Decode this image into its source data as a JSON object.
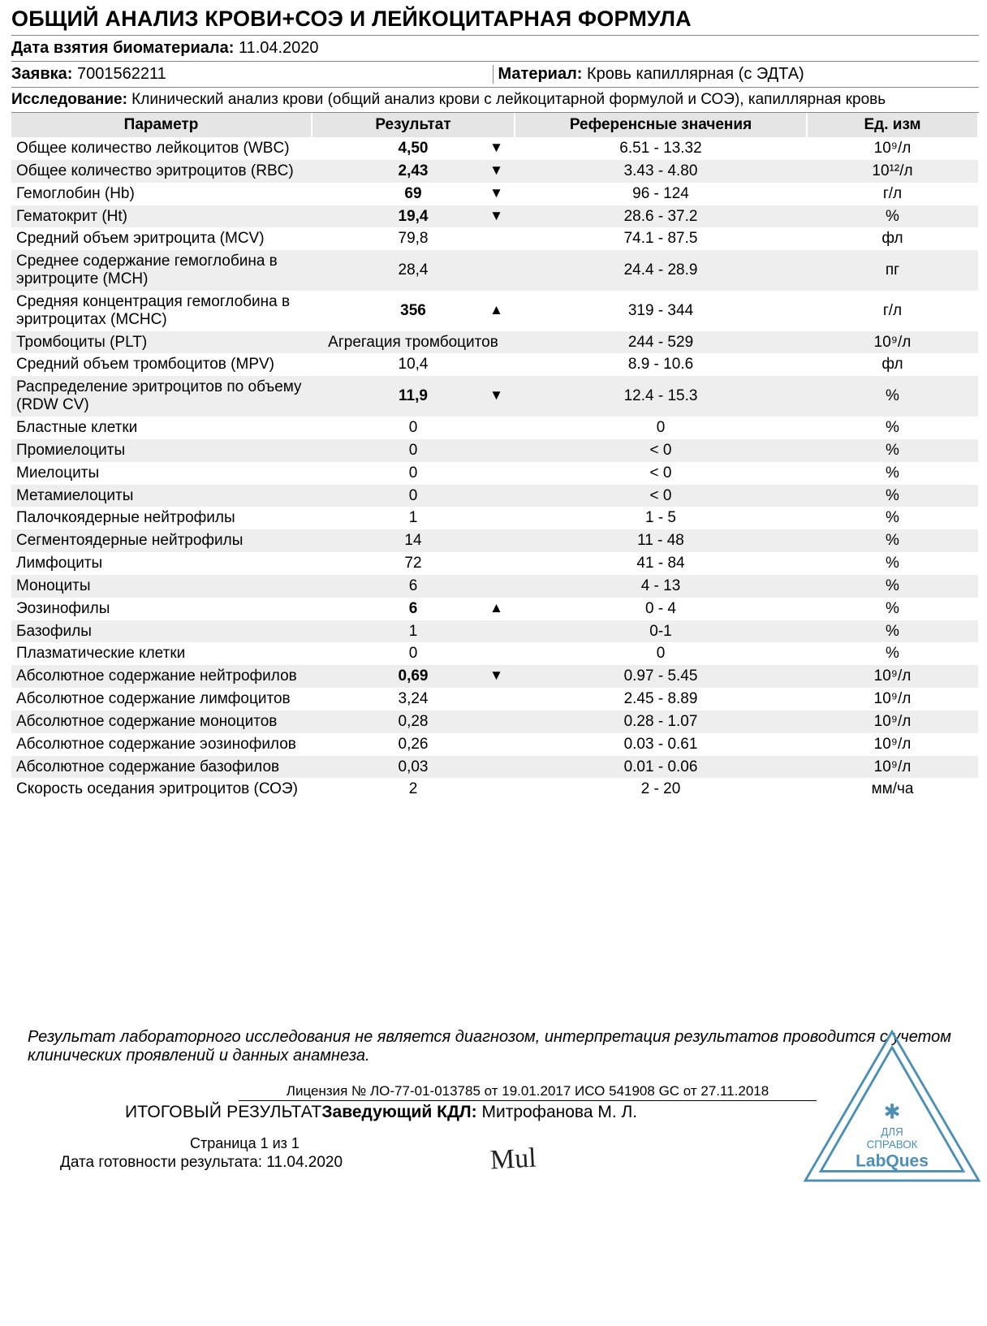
{
  "header": {
    "title": "ОБЩИЙ АНАЛИЗ КРОВИ+СОЭ И ЛЕЙКОЦИТАРНАЯ ФОРМУЛА",
    "biomaterial_label": "Дата взятия биоматериала:",
    "biomaterial_date": "11.04.2020",
    "request_label": "Заявка:",
    "request_number": "7001562211",
    "material_label": "Материал:",
    "material_value": "Кровь капиллярная (с ЭДТА)",
    "study_label": "Исследование:",
    "study_value": "Клинический анализ крови (общий анализ крови с лейкоцитарной формулой и СОЭ), капиллярная кровь"
  },
  "table": {
    "columns": {
      "parameter": "Параметр",
      "result": "Результат",
      "reference": "Референсные значения",
      "units": "Ед. изм"
    },
    "header_bg": "#e5e5e5",
    "row_shade_bg": "#eeeeee",
    "rows": [
      {
        "param": "Общее количество лейкоцитов (WBC)",
        "result": "4,50",
        "bold": true,
        "flag": "down",
        "ref": "6.51 - 13.32",
        "unit": "10⁹/л",
        "shade": false
      },
      {
        "param": "Общее количество эритроцитов (RBC)",
        "result": "2,43",
        "bold": true,
        "flag": "down",
        "ref": "3.43 - 4.80",
        "unit": "10¹²/л",
        "shade": true
      },
      {
        "param": "Гемоглобин (Hb)",
        "result": "69",
        "bold": true,
        "flag": "down",
        "ref": "96 - 124",
        "unit": "г/л",
        "shade": false
      },
      {
        "param": "Гематокрит (Ht)",
        "result": "19,4",
        "bold": true,
        "flag": "down",
        "ref": "28.6 - 37.2",
        "unit": "%",
        "shade": true
      },
      {
        "param": "Средний объем эритроцита (MCV)",
        "result": "79,8",
        "bold": false,
        "flag": "",
        "ref": "74.1 - 87.5",
        "unit": "фл",
        "shade": false
      },
      {
        "param": "Среднее содержание гемоглобина в эритроците (MCH)",
        "result": "28,4",
        "bold": false,
        "flag": "",
        "ref": "24.4 - 28.9",
        "unit": "пг",
        "shade": true
      },
      {
        "param": "Средняя концентрация гемоглобина в эритроцитах (MCHC)",
        "result": "356",
        "bold": true,
        "flag": "up",
        "ref": "319 - 344",
        "unit": "г/л",
        "shade": false
      },
      {
        "param": "Тромбоциты (PLT)",
        "result": "Агрегация тромбоцитов",
        "bold": false,
        "flag": "",
        "ref": "244 - 529",
        "unit": "10⁹/л",
        "shade": true
      },
      {
        "param": "Средний объем тромбоцитов (MPV)",
        "result": "10,4",
        "bold": false,
        "flag": "",
        "ref": "8.9 - 10.6",
        "unit": "фл",
        "shade": false
      },
      {
        "param": "Распределение эритроцитов по объему (RDW CV)",
        "result": "11,9",
        "bold": true,
        "flag": "down",
        "ref": "12.4 - 15.3",
        "unit": "%",
        "shade": true
      },
      {
        "param": "Бластные клетки",
        "result": "0",
        "bold": false,
        "flag": "",
        "ref": "0",
        "unit": "%",
        "shade": false
      },
      {
        "param": "Промиелоциты",
        "result": "0",
        "bold": false,
        "flag": "",
        "ref": "< 0",
        "unit": "%",
        "shade": true
      },
      {
        "param": "Миелоциты",
        "result": "0",
        "bold": false,
        "flag": "",
        "ref": "< 0",
        "unit": "%",
        "shade": false
      },
      {
        "param": "Метамиелоциты",
        "result": "0",
        "bold": false,
        "flag": "",
        "ref": "< 0",
        "unit": "%",
        "shade": true
      },
      {
        "param": "Палочкоядерные нейтрофилы",
        "result": "1",
        "bold": false,
        "flag": "",
        "ref": "1 - 5",
        "unit": "%",
        "shade": false
      },
      {
        "param": "Сегментоядерные нейтрофилы",
        "result": "14",
        "bold": false,
        "flag": "",
        "ref": "11 - 48",
        "unit": "%",
        "shade": true
      },
      {
        "param": "Лимфоциты",
        "result": "72",
        "bold": false,
        "flag": "",
        "ref": "41 - 84",
        "unit": "%",
        "shade": false
      },
      {
        "param": "Моноциты",
        "result": "6",
        "bold": false,
        "flag": "",
        "ref": "4 - 13",
        "unit": "%",
        "shade": true
      },
      {
        "param": "Эозинофилы",
        "result": "6",
        "bold": true,
        "flag": "up",
        "ref": "0 - 4",
        "unit": "%",
        "shade": false
      },
      {
        "param": "Базофилы",
        "result": "1",
        "bold": false,
        "flag": "",
        "ref": "0-1",
        "unit": "%",
        "shade": true
      },
      {
        "param": "Плазматические клетки",
        "result": "0",
        "bold": false,
        "flag": "",
        "ref": "0",
        "unit": "%",
        "shade": false
      },
      {
        "param": "Абсолютное содержание нейтрофилов",
        "result": "0,69",
        "bold": true,
        "flag": "down",
        "ref": "0.97 - 5.45",
        "unit": "10⁹/л",
        "shade": true
      },
      {
        "param": "Абсолютное содержание лимфоцитов",
        "result": "3,24",
        "bold": false,
        "flag": "",
        "ref": "2.45 - 8.89",
        "unit": "10⁹/л",
        "shade": false
      },
      {
        "param": "Абсолютное содержание моноцитов",
        "result": "0,28",
        "bold": false,
        "flag": "",
        "ref": "0.28 - 1.07",
        "unit": "10⁹/л",
        "shade": true
      },
      {
        "param": "Абсолютное содержание эозинофилов",
        "result": "0,26",
        "bold": false,
        "flag": "",
        "ref": "0.03 - 0.61",
        "unit": "10⁹/л",
        "shade": false
      },
      {
        "param": "Абсолютное содержание базофилов",
        "result": "0,03",
        "bold": false,
        "flag": "",
        "ref": "0.01 - 0.06",
        "unit": "10⁹/л",
        "shade": true
      },
      {
        "param": "Скорость оседания эритроцитов (СОЭ)",
        "result": "2",
        "bold": false,
        "flag": "",
        "ref": "2 - 20",
        "unit": "мм/ча",
        "shade": false
      }
    ],
    "flag_symbols": {
      "up": "▲",
      "down": "▼",
      "": ""
    }
  },
  "disclaimer": "Результат лабораторного исследования не является диагнозом, интерпретация результатов проводится с учетом клинических проявлений и данных анамнеза.",
  "footer": {
    "license": "Лицензия № ЛО-77-01-013785 от 19.01.2017 ИСО 541908 GC от 27.11.2018",
    "final_label": "ИТОГОВЫЙ РЕЗУЛЬТАТ",
    "head_label": "Заведующий КДЛ:",
    "head_name": "Митрофанова М. Л.",
    "page_text": "Страница 1 из 1",
    "ready_label": "Дата готовности результата:",
    "ready_date": "11.04.2020",
    "stamp_top": "ДЛЯ",
    "stamp_mid": "СПРАВОК",
    "stamp_brand": "LabQues",
    "stamp_color": "#4b8fb5"
  }
}
